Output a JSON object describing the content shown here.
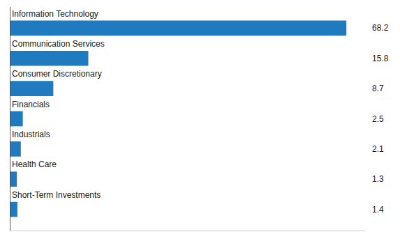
{
  "chart_data": {
    "type": "bar",
    "orientation": "horizontal",
    "categories": [
      "Short-Term Investments",
      "Health Care",
      "Industrials",
      "Financials",
      "Consumer Discretionary",
      "Communication Services",
      "Information Technology"
    ],
    "values": [
      1.4,
      1.3,
      2.1,
      2.5,
      8.7,
      15.8,
      68.2
    ],
    "color": "#1f7abf",
    "xlim": [
      0,
      72
    ],
    "tick_labels": false,
    "grid": false,
    "data_labels": true
  }
}
